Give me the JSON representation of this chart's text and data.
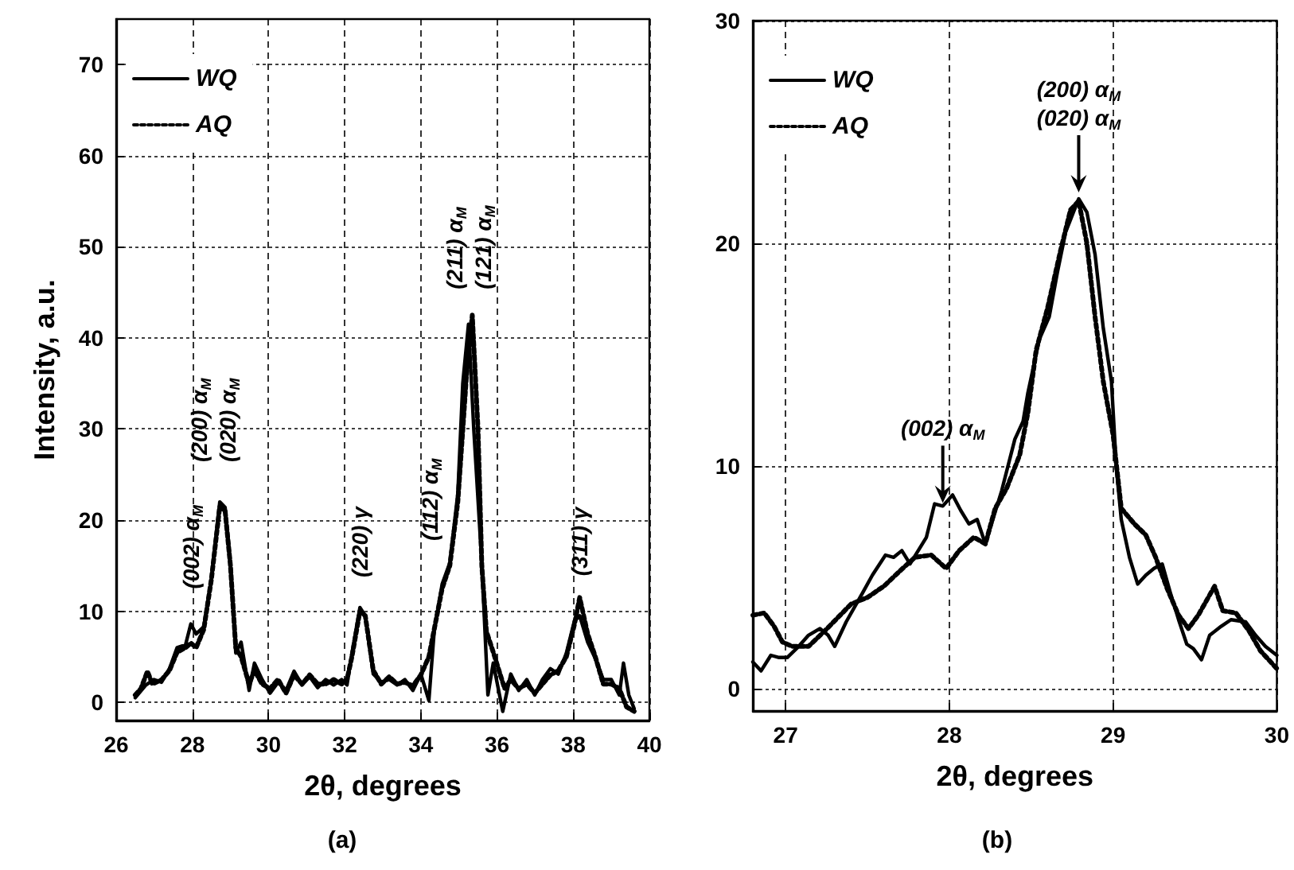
{
  "chart_data": [
    {
      "type": "line",
      "title": "(a)",
      "xlabel": "2θ, degrees",
      "ylabel": "Intensity, a.u.",
      "xlim": [
        26,
        40
      ],
      "ylim": [
        -2,
        75
      ],
      "xticks": [
        26,
        28,
        30,
        32,
        34,
        36,
        38,
        40
      ],
      "yticks": [
        0,
        10,
        20,
        30,
        40,
        50,
        60,
        70
      ],
      "grid": true,
      "legend": "top left",
      "series": [
        {
          "name": "WQ",
          "color": "#000000",
          "line_style": "solid",
          "x": [
            26.5,
            26.78,
            26.99,
            27.19,
            27.4,
            27.6,
            27.82,
            27.96,
            28.1,
            28.3,
            28.5,
            28.72,
            28.86,
            29.0,
            29.14,
            29.28,
            29.49,
            29.63,
            29.83,
            30.04,
            30.25,
            30.46,
            30.67,
            30.88,
            31.08,
            31.29,
            31.5,
            31.71,
            31.92,
            32.06,
            32.19,
            32.4,
            32.54,
            32.75,
            32.96,
            33.17,
            33.38,
            33.58,
            33.79,
            34.0,
            34.21,
            34.35,
            34.56,
            34.76,
            34.97,
            35.1,
            35.25,
            35.39,
            35.6,
            35.76,
            35.9,
            36.15,
            36.36,
            36.57,
            36.78,
            36.99,
            37.19,
            37.4,
            37.61,
            37.82,
            38.03,
            38.17,
            38.38,
            38.58,
            38.79,
            39.0,
            39.21,
            39.32,
            39.46,
            39.6
          ],
          "values": [
            0.5,
            1.9,
            2.5,
            2.2,
            3.7,
            6.0,
            6.3,
            8.6,
            7.5,
            8.3,
            13.6,
            22.0,
            21.4,
            15.3,
            5.4,
            6.6,
            1.3,
            4.3,
            2.5,
            1.0,
            2.2,
            1.3,
            3.4,
            1.9,
            2.8,
            1.6,
            2.5,
            1.9,
            2.5,
            1.9,
            5.4,
            10.4,
            9.5,
            3.1,
            2.2,
            2.5,
            1.9,
            2.5,
            1.3,
            3.1,
            0.2,
            7.8,
            13.0,
            15.3,
            22.9,
            35.0,
            41.5,
            29.9,
            15.3,
            0.8,
            4.3,
            -1.0,
            3.1,
            1.3,
            2.5,
            0.8,
            2.5,
            3.7,
            3.1,
            5.4,
            8.9,
            9.5,
            6.6,
            4.8,
            2.5,
            2.5,
            0.8,
            4.3,
            0.8,
            -0.7
          ]
        },
        {
          "name": "AQ",
          "color": "#000000",
          "line_style": "dotted",
          "x": [
            26.5,
            26.65,
            26.82,
            26.95,
            27.2,
            27.4,
            27.6,
            27.82,
            27.96,
            28.1,
            28.3,
            28.5,
            28.72,
            28.86,
            29.0,
            29.14,
            29.28,
            29.49,
            29.63,
            29.83,
            30.04,
            30.25,
            30.46,
            30.67,
            30.88,
            31.08,
            31.29,
            31.5,
            31.71,
            31.92,
            32.06,
            32.19,
            32.4,
            32.54,
            32.75,
            32.96,
            33.17,
            33.38,
            33.58,
            33.79,
            34.0,
            34.21,
            34.35,
            34.56,
            34.76,
            34.97,
            35.2,
            35.35,
            35.5,
            35.6,
            35.72,
            35.9,
            36.05,
            36.2,
            36.36,
            36.57,
            36.78,
            36.99,
            37.19,
            37.4,
            37.61,
            37.82,
            38.03,
            38.17,
            38.38,
            38.58,
            38.79,
            39.0,
            39.21,
            39.4,
            39.6
          ],
          "values": [
            0.8,
            1.5,
            3.4,
            2.0,
            2.5,
            3.5,
            5.5,
            6.0,
            6.5,
            6.0,
            8.0,
            13.5,
            21.5,
            21.0,
            15.0,
            6.0,
            5.0,
            2.0,
            3.5,
            2.0,
            1.5,
            2.5,
            1.0,
            3.0,
            2.0,
            3.0,
            2.0,
            2.0,
            2.5,
            2.0,
            2.5,
            5.0,
            10.0,
            9.5,
            3.5,
            2.0,
            2.8,
            2.0,
            2.2,
            1.8,
            3.0,
            5.0,
            8.0,
            12.5,
            15.0,
            22.0,
            36.0,
            42.5,
            30.0,
            15.0,
            7.8,
            5.5,
            3.5,
            1.5,
            2.5,
            1.5,
            2.0,
            1.0,
            2.0,
            3.0,
            3.5,
            5.0,
            8.5,
            11.5,
            7.5,
            5.0,
            2.0,
            2.0,
            1.5,
            -0.5,
            -1.0
          ]
        }
      ],
      "annotations": [
        {
          "text": "(002) α$_{M}$",
          "x": 27.96,
          "y": 8.6
        },
        {
          "text": "(200) α$_{M}$\n(020) α$_{M}$",
          "x": 28.72,
          "y": 22.0
        },
        {
          "text": "(220) γ",
          "x": 32.4,
          "y": 10.4
        },
        "(112) α$_{M}$",
        {
          "text": "(211) α$_{M}$\n(121) α$_{M}$",
          "x": 35.25,
          "y": 41.5
        },
        {
          "text": "(311) γ",
          "x": 38.17,
          "y": 9.5
        }
      ]
    },
    {
      "type": "line",
      "title": "(b)",
      "xlabel": "2θ, degrees",
      "xlim": [
        26.8,
        30
      ],
      "ylim": [
        -1,
        30
      ],
      "xticks": [
        27,
        28,
        29,
        30
      ],
      "yticks": [
        0,
        10,
        20,
        30
      ],
      "grid": true,
      "legend": "top left",
      "series": [
        {
          "name": "WQ",
          "color": "#000000",
          "line_style": "solid",
          "x": [
            26.8,
            26.85,
            26.91,
            26.96,
            27.01,
            27.08,
            27.14,
            27.21,
            27.26,
            27.3,
            27.37,
            27.47,
            27.53,
            27.61,
            27.66,
            27.71,
            27.76,
            27.86,
            27.91,
            27.96,
            28.02,
            28.07,
            28.12,
            28.17,
            28.22,
            28.27,
            28.32,
            28.4,
            28.45,
            28.48,
            28.55,
            28.61,
            28.66,
            28.71,
            28.79,
            28.84,
            28.89,
            28.94,
            28.99,
            29.02,
            29.05,
            29.1,
            29.15,
            29.2,
            29.25,
            29.3,
            29.35,
            29.4,
            29.45,
            29.49,
            29.54,
            29.59,
            29.66,
            29.72,
            29.81,
            29.87,
            29.93,
            30.0
          ],
          "values": [
            1.2,
            0.8,
            1.5,
            1.4,
            1.4,
            1.9,
            2.4,
            2.7,
            2.4,
            1.9,
            3.0,
            4.3,
            5.1,
            6.0,
            5.9,
            6.2,
            5.6,
            6.8,
            8.3,
            8.2,
            8.7,
            8.0,
            7.4,
            7.6,
            6.5,
            7.7,
            8.9,
            11.2,
            12.0,
            13.3,
            15.7,
            16.7,
            18.7,
            20.5,
            22.0,
            21.4,
            19.5,
            16.2,
            13.8,
            9.9,
            7.6,
            5.9,
            4.7,
            5.1,
            5.4,
            5.6,
            4.3,
            3.1,
            2.0,
            1.8,
            1.3,
            2.4,
            2.8,
            3.1,
            3.0,
            2.4,
            1.9,
            1.5
          ]
        },
        {
          "name": "AQ",
          "color": "#000000",
          "line_style": "dotted",
          "x": [
            26.8,
            26.87,
            26.93,
            26.98,
            27.04,
            27.14,
            27.24,
            27.32,
            27.4,
            27.5,
            27.6,
            27.7,
            27.79,
            27.89,
            27.98,
            28.06,
            28.15,
            28.22,
            28.28,
            28.35,
            28.43,
            28.48,
            28.53,
            28.6,
            28.68,
            28.74,
            28.79,
            28.84,
            28.89,
            28.94,
            29.0,
            29.05,
            29.13,
            29.2,
            29.26,
            29.33,
            29.4,
            29.46,
            29.52,
            29.62,
            29.67,
            29.75,
            29.83,
            29.9,
            30.0
          ],
          "values": [
            3.3,
            3.4,
            2.8,
            2.1,
            1.9,
            1.9,
            2.6,
            3.2,
            3.8,
            4.1,
            4.6,
            5.3,
            5.9,
            6.0,
            5.4,
            6.2,
            6.8,
            6.5,
            8.1,
            9.0,
            10.5,
            12.4,
            15.2,
            17.1,
            19.7,
            21.5,
            21.9,
            20.0,
            16.7,
            13.8,
            11.4,
            8.1,
            7.4,
            6.9,
            5.9,
            4.5,
            3.3,
            2.7,
            3.3,
            4.6,
            3.5,
            3.4,
            2.6,
            1.7,
            0.9
          ]
        }
      ],
      "annotations": [
        {
          "text": "(002) α$_{M}$",
          "x": 27.96,
          "y": 8.2
        },
        {
          "text": "(200) α$_{M}$\n(020) α$_{M}$",
          "x": 28.79,
          "y": 22.0
        }
      ]
    }
  ]
}
